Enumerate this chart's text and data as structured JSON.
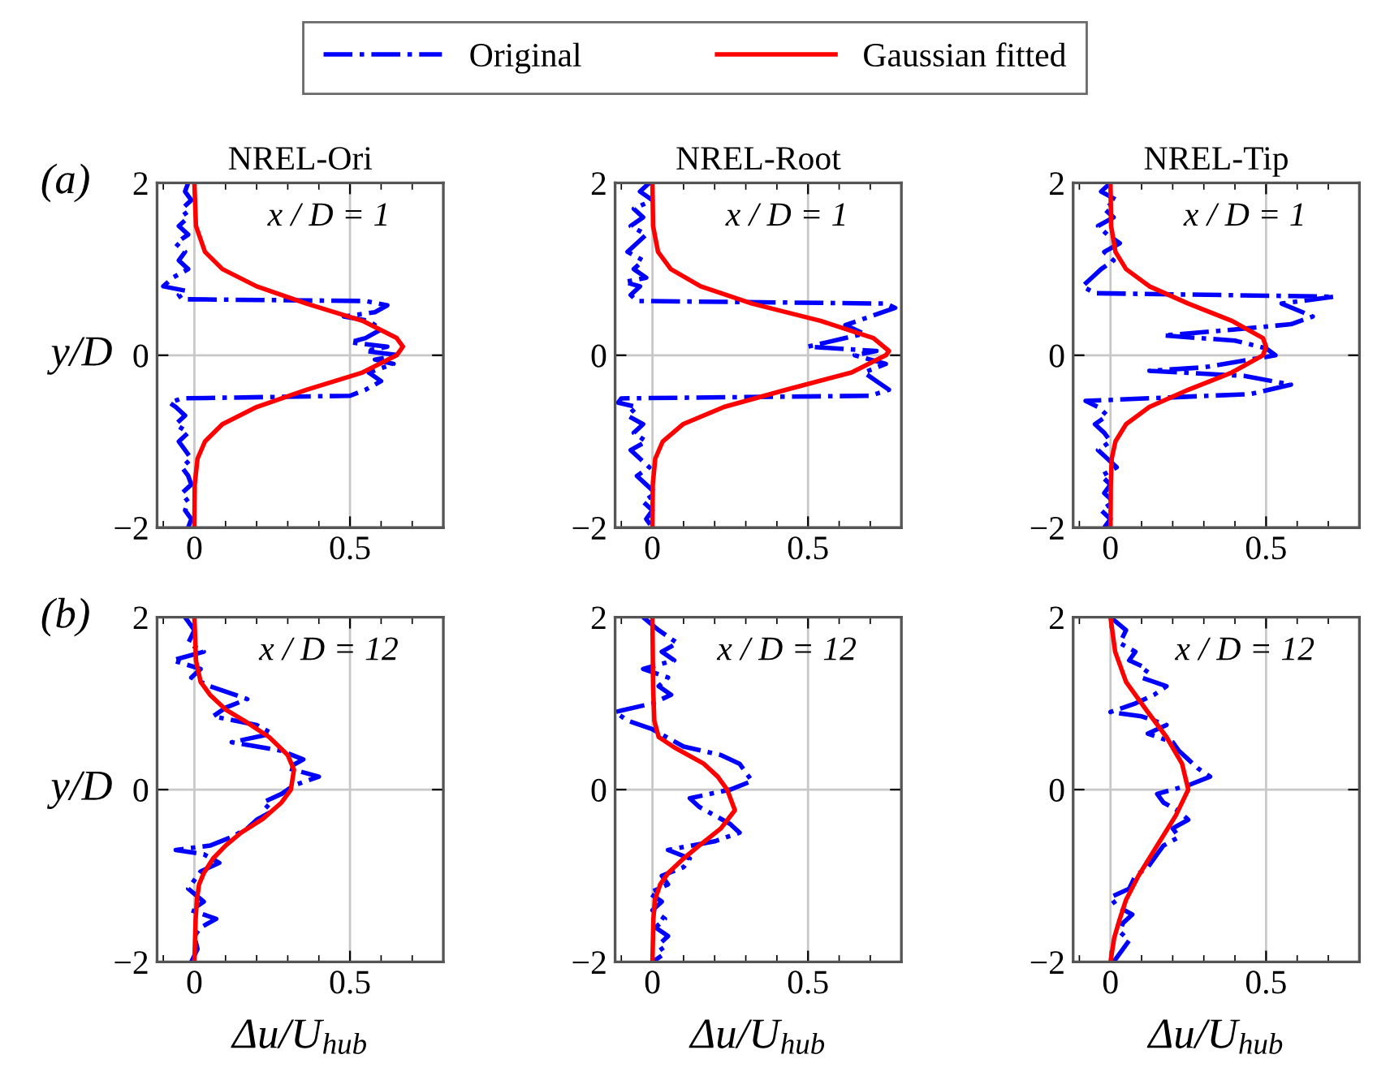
{
  "chart_data": [
    {
      "type": "line",
      "title": "NREL-Ori",
      "ylabel": "y/D",
      "annotations": [
        "x / D = 1",
        "(a)"
      ],
      "legend": "top",
      "grid": true,
      "xlim": [
        -0.12,
        0.8
      ],
      "xticks": [
        0,
        0.5,
        {
          "value": -0.1,
          "label": null
        },
        {
          "value": 0.1,
          "label": null
        },
        {
          "value": 0.2,
          "label": null
        },
        {
          "value": 0.3,
          "label": null
        },
        {
          "value": 0.4,
          "label": null
        },
        {
          "value": 0.6,
          "label": null
        },
        {
          "value": 0.7,
          "label": null
        }
      ],
      "ylim": [
        -2,
        2
      ],
      "yticks": [
        -2,
        0,
        2
      ],
      "series": [
        {
          "name": "Original",
          "color": "#0000ff",
          "line_style": "dashdot",
          "x": [
            -0.02,
            -0.03,
            -0.01,
            -0.04,
            -0.02,
            -0.05,
            -0.02,
            -0.06,
            -0.03,
            -0.05,
            -0.02,
            -0.07,
            -0.1,
            -0.03,
            -0.05,
            -0.04,
            0.55,
            0.62,
            0.58,
            0.48,
            0.56,
            0.6,
            0.55,
            0.5,
            0.62,
            0.55,
            0.66,
            0.58,
            0.64,
            0.56,
            0.6,
            0.55,
            0.5,
            -0.04,
            -0.08,
            -0.06,
            -0.03,
            -0.06,
            -0.02,
            -0.05,
            -0.03,
            -0.01,
            -0.04,
            -0.02,
            -0.01,
            -0.04,
            -0.02,
            -0.03,
            -0.01,
            -0.02
          ],
          "values": [
            2,
            1.9,
            1.8,
            1.7,
            1.6,
            1.5,
            1.4,
            1.3,
            1.2,
            1.1,
            1.0,
            0.9,
            0.8,
            0.75,
            0.7,
            0.65,
            0.63,
            0.58,
            0.5,
            0.45,
            0.4,
            0.3,
            0.2,
            0.15,
            0.1,
            0.05,
            0,
            -0.05,
            -0.1,
            -0.2,
            -0.3,
            -0.4,
            -0.47,
            -0.5,
            -0.55,
            -0.6,
            -0.7,
            -0.8,
            -0.9,
            -1.0,
            -1.1,
            -1.2,
            -1.3,
            -1.4,
            -1.5,
            -1.6,
            -1.7,
            -1.8,
            -1.9,
            -2
          ]
        },
        {
          "name": "Gaussian fitted",
          "color": "#ff0000",
          "line_style": "solid",
          "x": [
            0,
            0.001,
            0.01,
            0.034,
            0.09,
            0.2,
            0.36,
            0.54,
            0.65,
            0.67,
            0.65,
            0.54,
            0.36,
            0.2,
            0.09,
            0.034,
            0.005,
            0
          ],
          "values": [
            -2,
            -1.5,
            -1.2,
            -1.0,
            -0.8,
            -0.6,
            -0.4,
            -0.2,
            0,
            0.1,
            0.2,
            0.4,
            0.6,
            0.8,
            1.0,
            1.2,
            1.5,
            2
          ]
        }
      ]
    },
    {
      "type": "line",
      "title": "NREL-Root",
      "annotations": [
        "x / D = 1"
      ],
      "grid": true,
      "xlim": [
        -0.12,
        0.8
      ],
      "xticks": [
        0,
        0.5,
        {
          "value": -0.1,
          "label": null
        },
        {
          "value": 0.1,
          "label": null
        },
        {
          "value": 0.2,
          "label": null
        },
        {
          "value": 0.3,
          "label": null
        },
        {
          "value": 0.4,
          "label": null
        },
        {
          "value": 0.6,
          "label": null
        },
        {
          "value": 0.7,
          "label": null
        }
      ],
      "ylim": [
        -2,
        2
      ],
      "yticks": [
        -2,
        0,
        2
      ],
      "series": [
        {
          "color": "#0000ff",
          "line_style": "dashdot",
          "x": [
            -0.01,
            -0.04,
            0.0,
            -0.06,
            -0.03,
            -0.07,
            -0.02,
            -0.05,
            -0.08,
            -0.03,
            -0.06,
            -0.02,
            -0.09,
            -0.04,
            -0.07,
            -0.05,
            0.75,
            0.78,
            0.7,
            0.62,
            0.68,
            0.56,
            0.5,
            0.72,
            0.65,
            0.75,
            0.68,
            0.72,
            0.76,
            0.7,
            -0.1,
            -0.11,
            -0.05,
            -0.08,
            -0.03,
            -0.06,
            -0.02,
            -0.07,
            -0.04,
            -0.01,
            -0.05,
            -0.02,
            0.01,
            -0.03,
            0.0,
            -0.02,
            0.0
          ],
          "values": [
            2,
            1.9,
            1.8,
            1.7,
            1.6,
            1.5,
            1.4,
            1.3,
            1.2,
            1.1,
            1.0,
            0.9,
            0.85,
            0.8,
            0.7,
            0.63,
            0.6,
            0.55,
            0.45,
            0.35,
            0.25,
            0.15,
            0.1,
            0.05,
            0,
            -0.1,
            -0.2,
            -0.3,
            -0.4,
            -0.47,
            -0.5,
            -0.55,
            -0.6,
            -0.7,
            -0.8,
            -0.9,
            -1.0,
            -1.1,
            -1.2,
            -1.3,
            -1.4,
            -1.5,
            -1.6,
            -1.7,
            -1.8,
            -1.9,
            -2
          ]
        },
        {
          "color": "#ff0000",
          "line_style": "solid",
          "x": [
            0,
            0.001,
            0.009,
            0.033,
            0.098,
            0.23,
            0.43,
            0.64,
            0.75,
            0.76,
            0.71,
            0.54,
            0.32,
            0.155,
            0.059,
            0.018,
            0.002,
            0
          ],
          "values": [
            -2,
            -1.5,
            -1.2,
            -1.0,
            -0.8,
            -0.6,
            -0.4,
            -0.2,
            0,
            0.05,
            0.2,
            0.4,
            0.6,
            0.8,
            1.0,
            1.2,
            1.5,
            2
          ]
        }
      ]
    },
    {
      "type": "line",
      "title": "NREL-Tip",
      "annotations": [
        "x / D = 1"
      ],
      "grid": true,
      "xlim": [
        -0.12,
        0.8
      ],
      "xticks": [
        0,
        0.5,
        {
          "value": -0.1,
          "label": null
        },
        {
          "value": 0.1,
          "label": null
        },
        {
          "value": 0.2,
          "label": null
        },
        {
          "value": 0.3,
          "label": null
        },
        {
          "value": 0.4,
          "label": null
        },
        {
          "value": 0.6,
          "label": null
        },
        {
          "value": 0.7,
          "label": null
        }
      ],
      "ylim": [
        -2,
        2
      ],
      "yticks": [
        -2,
        0,
        2
      ],
      "series": [
        {
          "color": "#0000ff",
          "line_style": "dashdot",
          "x": [
            0.0,
            -0.03,
            0.02,
            -0.02,
            0.01,
            -0.04,
            -0.01,
            0.03,
            -0.02,
            0.01,
            -0.03,
            -0.06,
            -0.09,
            -0.05,
            0.72,
            0.55,
            0.65,
            0.58,
            0.4,
            0.17,
            0.4,
            0.5,
            0.53,
            0.4,
            0.3,
            0.125,
            0.43,
            0.58,
            0.45,
            -0.08,
            -0.04,
            -0.01,
            -0.05,
            -0.02,
            0.0,
            -0.04,
            -0.01,
            0.02,
            -0.03,
            0.0,
            -0.02,
            0.01,
            -0.03,
            0.0,
            -0.02
          ],
          "values": [
            2,
            1.9,
            1.8,
            1.7,
            1.6,
            1.5,
            1.4,
            1.3,
            1.2,
            1.1,
            1.0,
            0.9,
            0.8,
            0.72,
            0.68,
            0.6,
            0.45,
            0.36,
            0.3,
            0.23,
            0.17,
            0.08,
            0,
            -0.08,
            -0.14,
            -0.18,
            -0.24,
            -0.34,
            -0.45,
            -0.53,
            -0.6,
            -0.7,
            -0.8,
            -0.9,
            -1.0,
            -1.1,
            -1.2,
            -1.3,
            -1.4,
            -1.5,
            -1.6,
            -1.7,
            -1.8,
            -1.9,
            -2
          ]
        },
        {
          "color": "#ff0000",
          "line_style": "solid",
          "x": [
            0,
            0.001,
            0.004,
            0.016,
            0.05,
            0.125,
            0.25,
            0.39,
            0.49,
            0.5,
            0.49,
            0.39,
            0.25,
            0.125,
            0.05,
            0.016,
            0.002,
            0
          ],
          "values": [
            -2,
            -1.5,
            -1.2,
            -1.0,
            -0.8,
            -0.6,
            -0.4,
            -0.2,
            0,
            0.1,
            0.2,
            0.4,
            0.6,
            0.8,
            1.0,
            1.2,
            1.5,
            2
          ]
        }
      ]
    },
    {
      "type": "line",
      "ylabel": "y/D",
      "xlabel": "Δu/U$_{hub}$",
      "annotations": [
        "x / D = 12",
        "(b)"
      ],
      "grid": true,
      "xlim": [
        -0.12,
        0.8
      ],
      "xticks": [
        0,
        0.5,
        {
          "value": -0.1,
          "label": null
        },
        {
          "value": 0.1,
          "label": null
        },
        {
          "value": 0.2,
          "label": null
        },
        {
          "value": 0.3,
          "label": null
        },
        {
          "value": 0.4,
          "label": null
        },
        {
          "value": 0.6,
          "label": null
        },
        {
          "value": 0.7,
          "label": null
        }
      ],
      "ylim": [
        -2,
        2
      ],
      "yticks": [
        -2,
        0,
        2
      ],
      "series": [
        {
          "color": "#0000ff",
          "line_style": "dashdot",
          "x": [
            -0.03,
            0.0,
            -0.02,
            0.03,
            -0.07,
            0.02,
            -0.01,
            0.05,
            0.17,
            0.1,
            0.06,
            0.2,
            0.25,
            0.12,
            0.28,
            0.35,
            0.3,
            0.4,
            0.32,
            0.28,
            0.22,
            0.25,
            0.2,
            0.17,
            0.12,
            0.05,
            -0.06,
            0.03,
            0.08,
            0.02,
            0.0,
            -0.02,
            0.03,
            -0.01,
            0.07,
            0.02,
            0.0,
            0.01,
            -0.01
          ],
          "values": [
            2,
            1.85,
            1.7,
            1.6,
            1.5,
            1.4,
            1.3,
            1.2,
            1.05,
            0.95,
            0.85,
            0.75,
            0.65,
            0.55,
            0.45,
            0.35,
            0.25,
            0.15,
            0.05,
            -0.05,
            -0.15,
            -0.25,
            -0.35,
            -0.45,
            -0.55,
            -0.65,
            -0.7,
            -0.75,
            -0.85,
            -0.95,
            -1.05,
            -1.15,
            -1.3,
            -1.4,
            -1.5,
            -1.6,
            -1.7,
            -1.85,
            -2
          ]
        },
        {
          "color": "#ff0000",
          "line_style": "solid",
          "x": [
            0,
            0.004,
            0.008,
            0.015,
            0.03,
            0.06,
            0.1,
            0.15,
            0.22,
            0.28,
            0.31,
            0.32,
            0.3,
            0.24,
            0.16,
            0.1,
            0.05,
            0.02,
            0.005,
            0
          ],
          "values": [
            -2,
            -1.5,
            -1.28,
            -1.1,
            -0.97,
            -0.8,
            -0.65,
            -0.5,
            -0.34,
            -0.15,
            0,
            0.23,
            0.4,
            0.61,
            0.8,
            0.93,
            1.1,
            1.25,
            1.5,
            2
          ]
        }
      ]
    },
    {
      "type": "line",
      "xlabel": "Δu/U$_{hub}$",
      "annotations": [
        "x / D = 12"
      ],
      "grid": true,
      "xlim": [
        -0.12,
        0.8
      ],
      "xticks": [
        0,
        0.5,
        {
          "value": -0.1,
          "label": null
        },
        {
          "value": 0.1,
          "label": null
        },
        {
          "value": 0.2,
          "label": null
        },
        {
          "value": 0.3,
          "label": null
        },
        {
          "value": 0.4,
          "label": null
        },
        {
          "value": 0.6,
          "label": null
        },
        {
          "value": 0.7,
          "label": null
        }
      ],
      "ylim": [
        -2,
        2
      ],
      "yticks": [
        -2,
        0,
        2
      ],
      "series": [
        {
          "color": "#0000ff",
          "line_style": "dashdot",
          "x": [
            -0.03,
            0.02,
            0.08,
            0.03,
            0.07,
            -0.03,
            0.05,
            0.02,
            0.06,
            0.0,
            -0.12,
            -0.08,
            0.0,
            0.05,
            0.1,
            0.22,
            0.28,
            0.3,
            0.32,
            0.25,
            0.12,
            0.15,
            0.2,
            0.25,
            0.28,
            0.2,
            0.05,
            0.12,
            0.1,
            0.03,
            0.05,
            -0.01,
            0.03,
            0.0,
            0.04,
            0.01,
            0.05,
            0.02,
            0.04,
            0.0
          ],
          "values": [
            2,
            1.85,
            1.7,
            1.6,
            1.5,
            1.4,
            1.3,
            1.2,
            1.1,
            1.0,
            0.9,
            0.8,
            0.7,
            0.6,
            0.5,
            0.4,
            0.3,
            0.2,
            0.1,
            0.0,
            -0.1,
            -0.2,
            -0.3,
            -0.4,
            -0.5,
            -0.6,
            -0.7,
            -0.8,
            -0.9,
            -1.0,
            -1.1,
            -1.2,
            -1.3,
            -1.4,
            -1.5,
            -1.6,
            -1.7,
            -1.8,
            -1.9,
            -2
          ]
        },
        {
          "color": "#ff0000",
          "line_style": "solid",
          "x": [
            0,
            0.003,
            0.008,
            0.025,
            0.05,
            0.1,
            0.15,
            0.22,
            0.265,
            0.24,
            0.21,
            0.165,
            0.07,
            0.02,
            0.006,
            0.002,
            0
          ],
          "values": [
            -2,
            -1.5,
            -1.28,
            -1.1,
            -0.97,
            -0.8,
            -0.65,
            -0.45,
            -0.24,
            0,
            0.15,
            0.3,
            0.49,
            0.61,
            0.8,
            1.2,
            2
          ]
        }
      ]
    },
    {
      "type": "line",
      "xlabel": "Δu/U$_{hub}$",
      "annotations": [
        "x / D = 12"
      ],
      "grid": true,
      "xlim": [
        -0.12,
        0.8
      ],
      "xticks": [
        0,
        0.5,
        {
          "value": -0.1,
          "label": null
        },
        {
          "value": 0.1,
          "label": null
        },
        {
          "value": 0.2,
          "label": null
        },
        {
          "value": 0.3,
          "label": null
        },
        {
          "value": 0.4,
          "label": null
        },
        {
          "value": 0.6,
          "label": null
        },
        {
          "value": 0.7,
          "label": null
        }
      ],
      "ylim": [
        -2,
        2
      ],
      "yticks": [
        -2,
        0,
        2
      ],
      "series": [
        {
          "color": "#0000ff",
          "line_style": "dashdot",
          "x": [
            0.0,
            0.05,
            0.03,
            0.08,
            0.06,
            0.12,
            0.1,
            0.18,
            0.14,
            0.08,
            0.0,
            0.1,
            0.18,
            0.12,
            0.2,
            0.22,
            0.25,
            0.28,
            0.32,
            0.25,
            0.15,
            0.17,
            0.22,
            0.25,
            0.2,
            0.22,
            0.17,
            0.15,
            0.12,
            0.08,
            0.06,
            0.0,
            0.02,
            0.07,
            0.04,
            0.03,
            0.06,
            0.04,
            0.01
          ],
          "values": [
            2,
            1.85,
            1.7,
            1.6,
            1.5,
            1.4,
            1.3,
            1.2,
            1.1,
            1.0,
            0.9,
            0.85,
            0.75,
            0.65,
            0.55,
            0.45,
            0.35,
            0.25,
            0.15,
            0.05,
            -0.05,
            -0.15,
            -0.25,
            -0.35,
            -0.45,
            -0.55,
            -0.65,
            -0.75,
            -0.9,
            -1.0,
            -1.15,
            -1.25,
            -1.35,
            -1.45,
            -1.55,
            -1.65,
            -1.75,
            -1.85,
            -2
          ]
        },
        {
          "color": "#ff0000",
          "line_style": "solid",
          "x": [
            0,
            0.012,
            0.03,
            0.05,
            0.09,
            0.15,
            0.21,
            0.25,
            0.23,
            0.18,
            0.12,
            0.05,
            0.015,
            0
          ],
          "values": [
            -2,
            -1.72,
            -1.5,
            -1.28,
            -1.0,
            -0.65,
            -0.3,
            0,
            0.3,
            0.61,
            0.9,
            1.25,
            1.6,
            2
          ]
        }
      ]
    }
  ]
}
